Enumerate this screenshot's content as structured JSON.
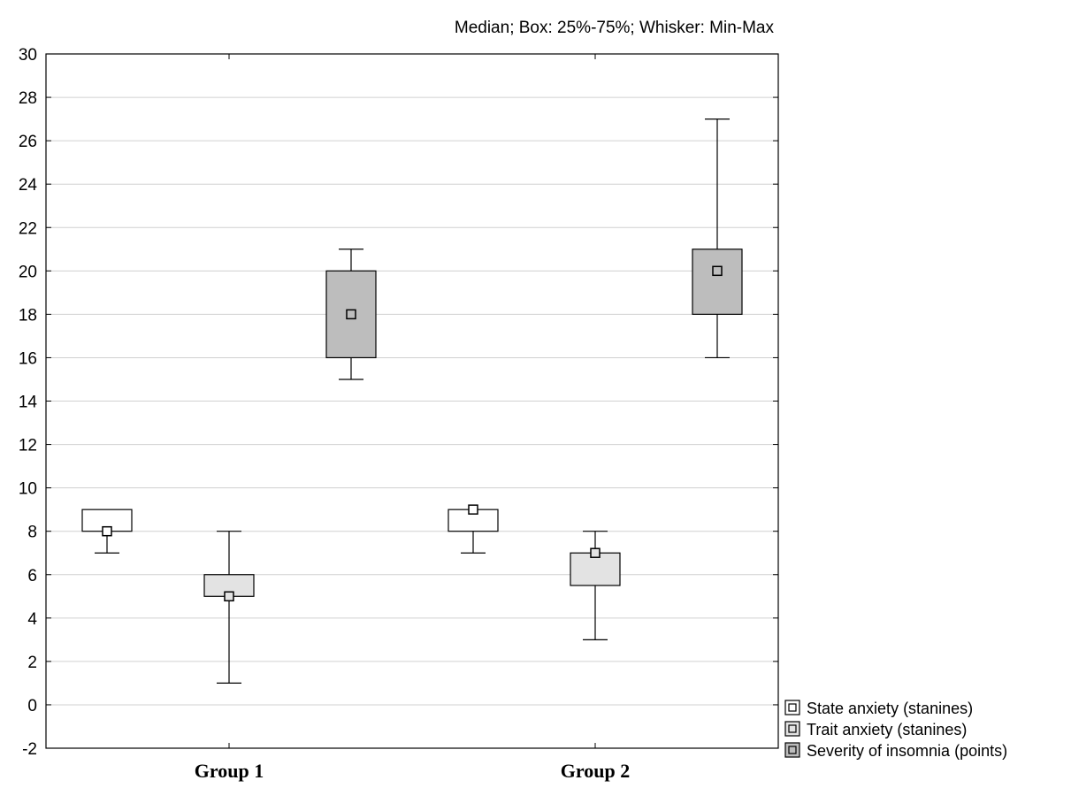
{
  "chart_data": {
    "type": "box",
    "title": "Median; Box: 25%-75%; Whisker: Min-Max",
    "categories": [
      "Group 1",
      "Group 2"
    ],
    "ylim": [
      -2,
      30
    ],
    "yticks": [
      -2,
      0,
      2,
      4,
      6,
      8,
      10,
      12,
      14,
      16,
      18,
      20,
      22,
      24,
      26,
      28,
      30
    ],
    "grid": true,
    "legend_position": "bottom-right",
    "series": [
      {
        "name": "State anxiety (stanines)",
        "color": "#ffffff",
        "boxes": [
          {
            "category": "Group 1",
            "min": 7,
            "q1": 8,
            "median": 8,
            "q3": 9,
            "max": 9
          },
          {
            "category": "Group 2",
            "min": 7,
            "q1": 8,
            "median": 9,
            "q3": 9,
            "max": 9
          }
        ]
      },
      {
        "name": "Trait anxiety (stanines)",
        "color": "#e3e3e3",
        "boxes": [
          {
            "category": "Group 1",
            "min": 1,
            "q1": 5,
            "median": 5,
            "q3": 6,
            "max": 8
          },
          {
            "category": "Group 2",
            "min": 3,
            "q1": 5.5,
            "median": 7,
            "q3": 7,
            "max": 8
          }
        ]
      },
      {
        "name": "Severity of insomnia (points)",
        "color": "#bdbdbd",
        "boxes": [
          {
            "category": "Group 1",
            "min": 15,
            "q1": 16,
            "median": 18,
            "q3": 20,
            "max": 21
          },
          {
            "category": "Group 2",
            "min": 16,
            "q1": 18,
            "median": 20,
            "q3": 21,
            "max": 27
          }
        ]
      }
    ]
  }
}
